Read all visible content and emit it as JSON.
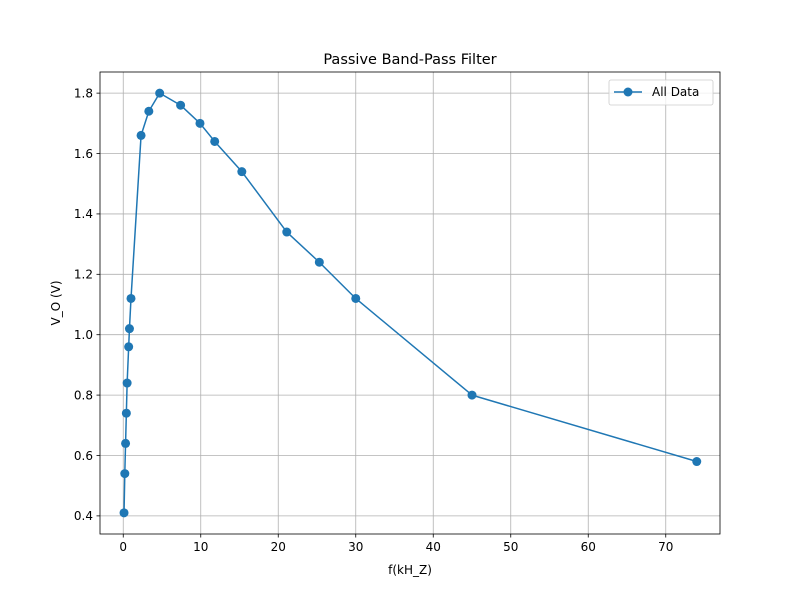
{
  "chart_data": {
    "type": "line",
    "title": "Passive Band-Pass Filter",
    "xlabel": "f(kH_Z)",
    "ylabel": "V_O (V)",
    "xlim": [
      -3,
      77
    ],
    "ylim": [
      0.34,
      1.87
    ],
    "x_ticks": [
      0,
      10,
      20,
      30,
      40,
      50,
      60,
      70
    ],
    "y_ticks": [
      0.4,
      0.6,
      0.8,
      1.0,
      1.2,
      1.4,
      1.6,
      1.8
    ],
    "grid": true,
    "legend_position": "top-right",
    "series": [
      {
        "name": "All Data",
        "color": "#1f77b4",
        "marker": "circle",
        "x": [
          0.1,
          0.2,
          0.3,
          0.4,
          0.5,
          0.7,
          0.8,
          1.0,
          2.3,
          3.3,
          4.7,
          7.4,
          9.9,
          11.8,
          15.3,
          21.1,
          25.3,
          30.0,
          45.0,
          74.0
        ],
        "y": [
          0.41,
          0.54,
          0.64,
          0.74,
          0.84,
          0.96,
          1.02,
          1.12,
          1.66,
          1.74,
          1.8,
          1.76,
          1.7,
          1.64,
          1.54,
          1.34,
          1.24,
          1.12,
          0.8,
          0.58
        ]
      }
    ]
  }
}
